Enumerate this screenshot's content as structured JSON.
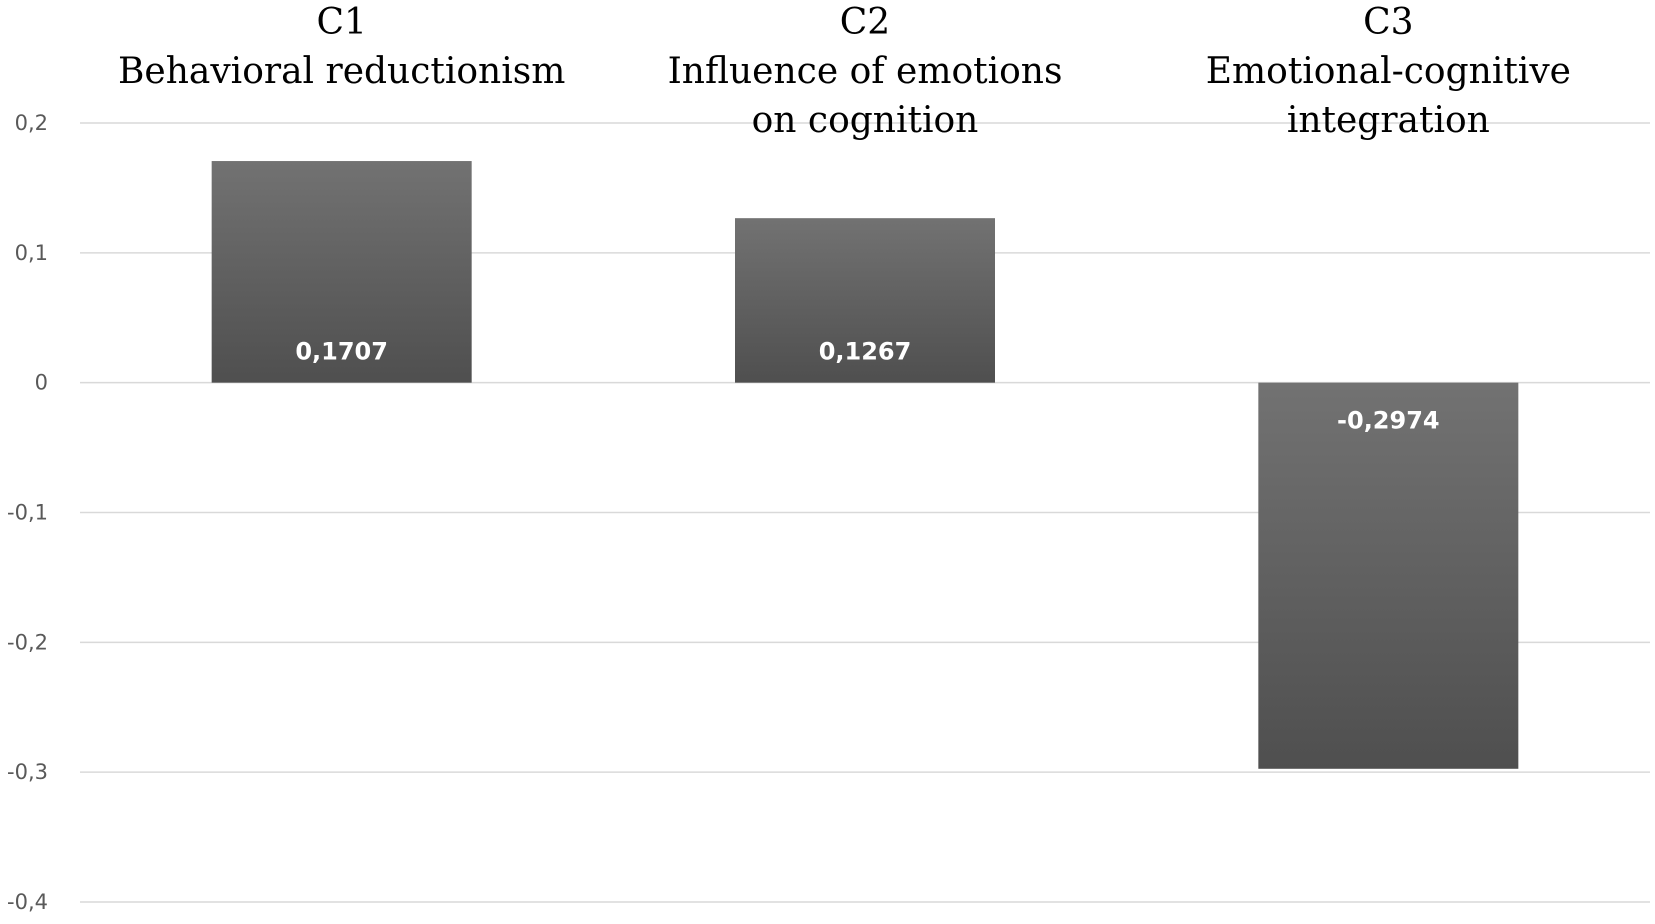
{
  "chart_data": {
    "type": "bar",
    "categories": [
      {
        "code": "C1",
        "lines": [
          "Behavioral reductionism"
        ]
      },
      {
        "code": "C2",
        "lines": [
          "Influence  of emotions",
          "on cognition"
        ]
      },
      {
        "code": "C3",
        "lines": [
          "Emotional-cognitive",
          "integration"
        ]
      }
    ],
    "values": [
      0.1707,
      0.1267,
      -0.2974
    ],
    "data_labels": [
      "0,1707",
      "0,1267",
      "-0,2974"
    ],
    "yticks": [
      {
        "value": 0.2,
        "label": "0,2"
      },
      {
        "value": 0.1,
        "label": "0,1"
      },
      {
        "value": 0,
        "label": "0"
      },
      {
        "value": -0.1,
        "label": "-0,1"
      },
      {
        "value": -0.2,
        "label": "-0,2"
      },
      {
        "value": -0.3,
        "label": "-0,3"
      },
      {
        "value": -0.4,
        "label": "-0,4"
      }
    ],
    "ylim": [
      -0.4,
      0.2
    ],
    "grid": true,
    "legend": "none",
    "category_label_position": "top",
    "bar_color_top": "#727272",
    "bar_color_bottom": "#4f4f4f",
    "title": "",
    "xlabel": "",
    "ylabel": ""
  }
}
